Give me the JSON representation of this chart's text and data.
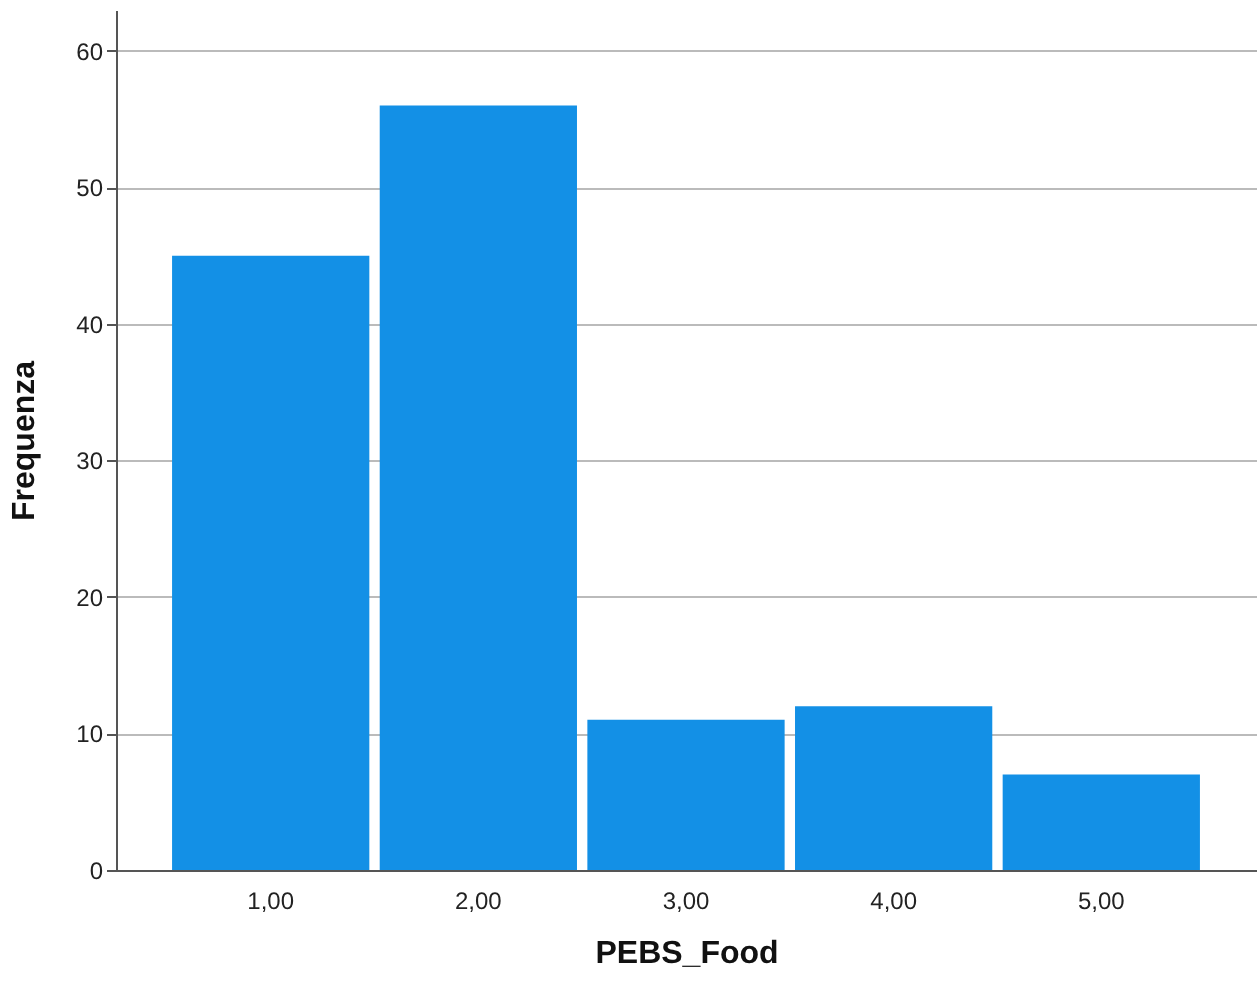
{
  "chart_data": {
    "type": "bar",
    "xlabel": "PEBS_Food",
    "ylabel": "Frequenza",
    "categories": [
      "1,00",
      "2,00",
      "3,00",
      "4,00",
      "5,00"
    ],
    "values": [
      45,
      56,
      11,
      12,
      7
    ],
    "color": "#1390e6",
    "ylim": [
      0,
      63
    ],
    "yticks": [
      0,
      10,
      20,
      30,
      40,
      50,
      60
    ],
    "grid": "y"
  }
}
